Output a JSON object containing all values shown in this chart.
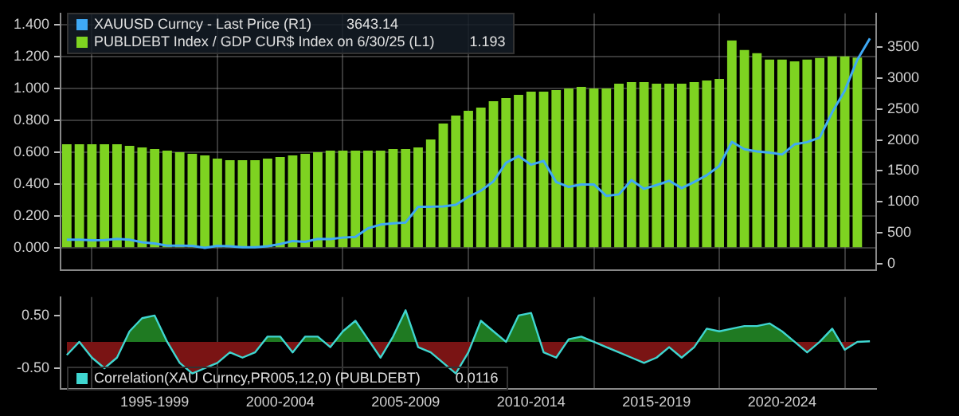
{
  "chart_data": [
    {
      "type": "bar",
      "categories": [
        null,
        null,
        null,
        null,
        null,
        null,
        null,
        null,
        null,
        null,
        null,
        null,
        null,
        null,
        null,
        null,
        null,
        null,
        null,
        null,
        null,
        null,
        null,
        null,
        null,
        null,
        null,
        null,
        null,
        null,
        null,
        null,
        null,
        null,
        null,
        null,
        null,
        null,
        null,
        null,
        null,
        null,
        null,
        null,
        null,
        null,
        null,
        null,
        null,
        null,
        null,
        null,
        null,
        null,
        null,
        null,
        null,
        null,
        null,
        null,
        null,
        null,
        null,
        null,
        null
      ],
      "series": [
        {
          "name": "XAUUSD Curncy - Last Price (R1)",
          "type": "line",
          "axis": "y2",
          "color": "#3fa9f5",
          "values": [
            385,
            385,
            375,
            380,
            400,
            385,
            345,
            325,
            290,
            290,
            285,
            255,
            285,
            280,
            265,
            265,
            280,
            315,
            365,
            350,
            400,
            395,
            420,
            430,
            570,
            630,
            650,
            665,
            920,
            920,
            925,
            950,
            1080,
            1180,
            1330,
            1630,
            1740,
            1600,
            1660,
            1320,
            1240,
            1280,
            1280,
            1095,
            1120,
            1350,
            1210,
            1270,
            1340,
            1220,
            1320,
            1430,
            1580,
            1970,
            1850,
            1815,
            1795,
            1765,
            1930,
            1965,
            2040,
            2450,
            2800,
            3300,
            3643.14
          ]
        },
        {
          "name": "PUBLDEBT Index / GDP CUR$ Index on 6/30/25 (L1)",
          "color": "#7ed321",
          "values": [
            0.65,
            0.65,
            0.65,
            0.65,
            0.65,
            0.64,
            0.63,
            0.62,
            0.61,
            0.6,
            0.59,
            0.58,
            0.56,
            0.55,
            0.55,
            0.55,
            0.56,
            0.57,
            0.58,
            0.59,
            0.6,
            0.61,
            0.61,
            0.61,
            0.61,
            0.61,
            0.62,
            0.62,
            0.63,
            0.68,
            0.78,
            0.83,
            0.86,
            0.88,
            0.92,
            0.94,
            0.96,
            0.98,
            0.98,
            0.99,
            1.0,
            1.01,
            1.0,
            1.0,
            1.03,
            1.04,
            1.04,
            1.03,
            1.03,
            1.03,
            1.04,
            1.05,
            1.06,
            1.3,
            1.24,
            1.22,
            1.18,
            1.18,
            1.17,
            1.18,
            1.19,
            1.2,
            1.2,
            1.193,
            null
          ]
        }
      ],
      "annotations": [
        "3643.14",
        "1.193"
      ],
      "ylim": [
        -0.14,
        1.47
      ],
      "yticks": [
        {
          "value": 0,
          "label": "0.000"
        },
        {
          "value": 0.2,
          "label": "0.200"
        },
        {
          "value": 0.4,
          "label": "0.400"
        },
        {
          "value": 0.6,
          "label": "0.600"
        },
        {
          "value": 0.8,
          "label": "0.800"
        },
        {
          "value": 1,
          "label": "1.000"
        },
        {
          "value": 1.2,
          "label": "1.200"
        },
        {
          "value": 1.4,
          "label": "1.400"
        }
      ],
      "y2lim": [
        -110,
        4050
      ],
      "y2ticks": [
        0,
        500,
        1000,
        1500,
        2000,
        2500,
        3000,
        3500
      ],
      "grid": true,
      "legend": "top left",
      "tick_labels": "y"
    },
    {
      "type": "area",
      "categories": [
        null,
        null,
        null,
        null,
        null,
        null,
        null,
        "1995-1999",
        null,
        null,
        null,
        null,
        null,
        null,
        null,
        null,
        null,
        "2000-2004",
        null,
        null,
        null,
        null,
        null,
        null,
        null,
        null,
        null,
        "2005-2009",
        null,
        null,
        null,
        null,
        null,
        null,
        null,
        null,
        null,
        "2010-2014",
        null,
        null,
        null,
        null,
        null,
        null,
        null,
        null,
        null,
        "2015-2019",
        null,
        null,
        null,
        null,
        null,
        null,
        null,
        null,
        null,
        "2020-2024",
        null,
        null,
        null,
        null,
        null,
        null,
        null
      ],
      "series": [
        {
          "name": "Correlation(XAU Curncy,PR005,12,0) (PUBLDEBT)",
          "color": "#3fd6d0",
          "values": [
            -0.25,
            0,
            -0.3,
            -0.5,
            -0.3,
            0.2,
            0.45,
            0.5,
            0,
            -0.4,
            -0.6,
            -0.5,
            -0.4,
            -0.2,
            -0.3,
            -0.2,
            0.1,
            0.1,
            -0.2,
            0.1,
            0.1,
            -0.1,
            0.2,
            0.4,
            0.05,
            -0.3,
            0.1,
            0.6,
            -0.1,
            -0.2,
            -0.4,
            -0.6,
            -0.2,
            0.4,
            0.2,
            0,
            0.5,
            0.55,
            -0.2,
            -0.3,
            0.05,
            0.1,
            0,
            -0.1,
            -0.2,
            -0.3,
            -0.4,
            -0.3,
            -0.1,
            -0.3,
            -0.1,
            0.25,
            0.2,
            0.25,
            0.3,
            0.3,
            0.35,
            0.2,
            0,
            -0.2,
            0,
            0.25,
            -0.15,
            0,
            0.0116
          ]
        }
      ],
      "annotations": [
        "0.0116"
      ],
      "ylim": [
        -0.9,
        0.85
      ],
      "yticks": [
        {
          "value": 0.5,
          "label": "0.50"
        },
        {
          "value": -0.5,
          "label": "-0.50"
        }
      ],
      "grid": "x",
      "legend": "bottom left"
    }
  ]
}
